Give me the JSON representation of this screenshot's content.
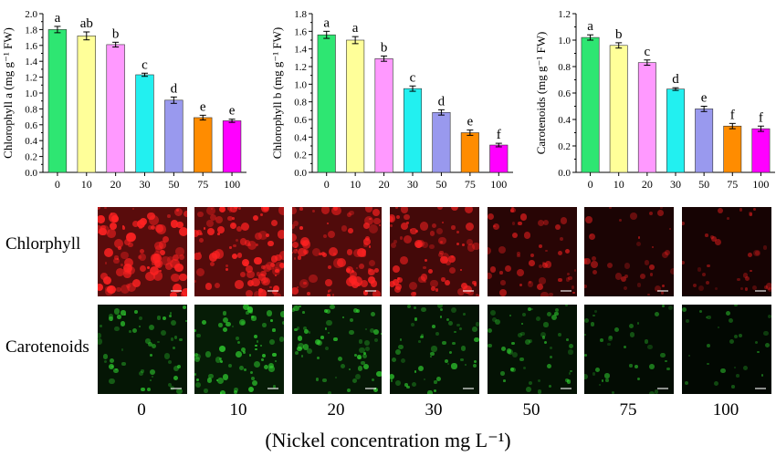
{
  "chart_data": [
    {
      "type": "bar",
      "ylabel": "Chlorophyll a (mg g⁻¹ FW)",
      "categories": [
        "0",
        "10",
        "20",
        "30",
        "50",
        "75",
        "100"
      ],
      "values": [
        1.8,
        1.72,
        1.61,
        1.23,
        0.91,
        0.69,
        0.65
      ],
      "errors": [
        0.04,
        0.05,
        0.03,
        0.02,
        0.04,
        0.03,
        0.02
      ],
      "letters": [
        "a",
        "ab",
        "b",
        "c",
        "d",
        "e",
        "e"
      ],
      "colors": [
        "#2ee672",
        "#ffff99",
        "#ff99ff",
        "#22f0f0",
        "#9999ee",
        "#ff8c00",
        "#ff00ff"
      ],
      "ylim": [
        0,
        2.0
      ],
      "yticks": [
        "0.0",
        "0.2",
        "0.4",
        "0.6",
        "0.8",
        "1.0",
        "1.2",
        "1.4",
        "1.6",
        "1.8",
        "2.0"
      ]
    },
    {
      "type": "bar",
      "ylabel": "Chlorophyll b (mg g⁻¹ FW)",
      "categories": [
        "0",
        "10",
        "20",
        "30",
        "50",
        "75",
        "100"
      ],
      "values": [
        1.56,
        1.5,
        1.29,
        0.95,
        0.68,
        0.45,
        0.31
      ],
      "errors": [
        0.04,
        0.04,
        0.03,
        0.03,
        0.03,
        0.03,
        0.02
      ],
      "letters": [
        "a",
        "a",
        "b",
        "c",
        "d",
        "e",
        "f"
      ],
      "colors": [
        "#2ee672",
        "#ffff99",
        "#ff99ff",
        "#22f0f0",
        "#9999ee",
        "#ff8c00",
        "#ff00ff"
      ],
      "ylim": [
        0,
        1.8
      ],
      "yticks": [
        "0.0",
        "0.2",
        "0.4",
        "0.6",
        "0.8",
        "1.0",
        "1.2",
        "1.4",
        "1.6",
        "1.8"
      ]
    },
    {
      "type": "bar",
      "ylabel": "Carotenoids (mg g⁻¹ FW)",
      "categories": [
        "0",
        "10",
        "20",
        "30",
        "50",
        "75",
        "100"
      ],
      "values": [
        1.02,
        0.96,
        0.83,
        0.63,
        0.48,
        0.35,
        0.33
      ],
      "errors": [
        0.02,
        0.02,
        0.02,
        0.01,
        0.02,
        0.02,
        0.02
      ],
      "letters": [
        "a",
        "b",
        "c",
        "d",
        "e",
        "f",
        "f"
      ],
      "colors": [
        "#2ee672",
        "#ffff99",
        "#ff99ff",
        "#22f0f0",
        "#9999ee",
        "#ff8c00",
        "#ff00ff"
      ],
      "ylim": [
        0,
        1.2
      ],
      "yticks": [
        "0.0",
        "0.2",
        "0.4",
        "0.6",
        "0.8",
        "1.0",
        "1.2"
      ]
    }
  ],
  "micrographs": {
    "rows": [
      {
        "label": "Chlorphyll",
        "color": "#ff2222",
        "intensity": [
          1.0,
          0.95,
          0.9,
          0.75,
          0.45,
          0.3,
          0.25
        ]
      },
      {
        "label": "Carotenoids",
        "color": "#33dd33",
        "intensity": [
          0.55,
          0.7,
          0.6,
          0.5,
          0.45,
          0.3,
          0.2
        ]
      }
    ],
    "concentrations": [
      "0",
      "10",
      "20",
      "30",
      "50",
      "75",
      "100"
    ]
  },
  "footer_label": "(Nickel concentration mg L⁻¹)"
}
